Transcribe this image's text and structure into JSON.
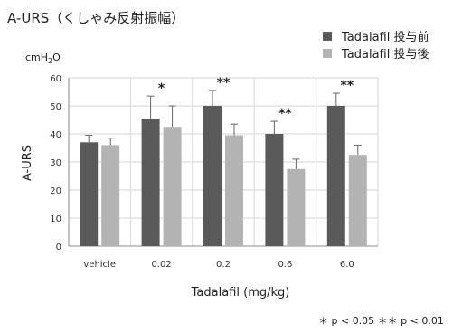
{
  "chart_data": {
    "type": "bar",
    "title": "A-URS（くしゃみ反射振幅）",
    "unit_label": {
      "base": "cmH",
      "sub": "2",
      "tail": "O"
    },
    "ylabel": "A-URS",
    "xlabel": "Tadalafil (mg/kg)",
    "categories": [
      "vehicle",
      "0.02",
      "0.2",
      "0.6",
      "6.0"
    ],
    "ylim": [
      0,
      60
    ],
    "yticks": [
      0,
      10,
      20,
      30,
      40,
      50,
      60
    ],
    "grid": true,
    "legend_position": "top-right",
    "series": [
      {
        "name": "Tadalafil  投与前",
        "color": "#5a5a5a",
        "values": [
          37,
          45.5,
          50,
          40,
          50
        ],
        "errors": [
          2.5,
          8,
          5.5,
          4.5,
          4.5
        ]
      },
      {
        "name": "Tadalafil  投与後",
        "color": "#b3b3b3",
        "values": [
          36,
          42.5,
          39.5,
          27.5,
          32.5
        ],
        "errors": [
          2.5,
          7.5,
          4,
          3.5,
          3.5
        ]
      }
    ],
    "significance": [
      "",
      "*",
      "**",
      "**",
      "**"
    ],
    "footnote": "＊ p < 0.05      ＊＊ p < 0.01"
  }
}
